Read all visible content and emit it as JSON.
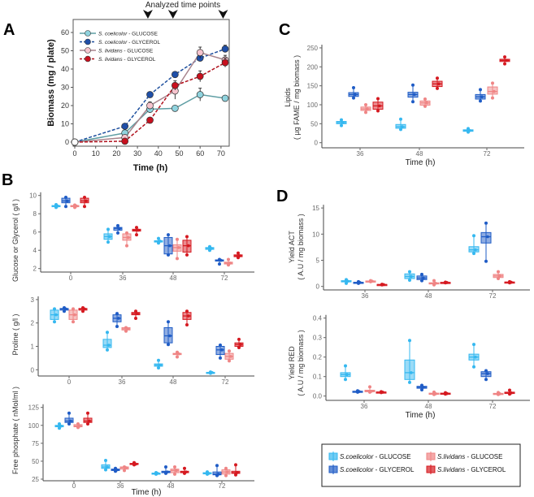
{
  "panels": {
    "a": "A",
    "b": "B",
    "c": "C",
    "d": "D"
  },
  "annotation": "Analyzed time points",
  "legend": {
    "items": [
      {
        "strain": "S.coelicolor",
        "substrate": " - GLUCOSE",
        "color": "#35b8f0"
      },
      {
        "strain": "S.coelicolor",
        "substrate": " - GLYCEROL",
        "color": "#1f5cc6"
      },
      {
        "strain": "S.lividans",
        "substrate": " - GLUCOSE",
        "color": "#ef8585"
      },
      {
        "strain": "S.lividans",
        "substrate": " - GLYCEROL",
        "color": "#d51920"
      }
    ]
  },
  "chart_data": [
    {
      "type": "line",
      "panel": "A",
      "xlabel": "Time (h)",
      "ylabel": "Biomass (mg / plate)",
      "xlim": [
        0,
        75
      ],
      "ylim": [
        0,
        65
      ],
      "xticks": [
        "0",
        "10",
        "20",
        "30",
        "40",
        "50",
        "60",
        "70"
      ],
      "yticks": [
        "0",
        "10",
        "20",
        "30",
        "40",
        "50",
        "60"
      ],
      "annotated_x": [
        35,
        47,
        71
      ],
      "x": [
        0,
        24,
        36,
        48,
        60,
        72
      ],
      "legend_position": "top-left",
      "series": [
        {
          "name": "S. coelicolor",
          "suffix": " - GLUCOSE",
          "values": [
            0,
            5,
            18,
            18.5,
            26,
            24
          ],
          "errors": [
            0,
            1,
            2,
            1,
            3.5,
            1
          ],
          "line": "#5f9ea4",
          "marker": "#8fd3de",
          "dash": false
        },
        {
          "name": "S. coelicolor",
          "suffix": " - GLYCEROL",
          "values": [
            0,
            8.7,
            26,
            37,
            46,
            51
          ],
          "errors": [
            0,
            1,
            1.5,
            1,
            1,
            2
          ],
          "line": "#1d4f9e",
          "marker": "#1f4fa8",
          "dash": true
        },
        {
          "name": "S. lividans",
          "suffix": " - GLUCOSE",
          "values": [
            0,
            2.5,
            20,
            28,
            49,
            45
          ],
          "errors": [
            0,
            1,
            2,
            4.5,
            3,
            2.5
          ],
          "line": "#a8848d",
          "marker": "#f6c4ce",
          "dash": false
        },
        {
          "name": "S. lividans",
          "suffix": " - GLYCEROL",
          "values": [
            0,
            0.5,
            12,
            31,
            36,
            43.5
          ],
          "errors": [
            0,
            0.5,
            1.5,
            2.5,
            3,
            2.5
          ],
          "line": "#b0101c",
          "marker": "#c8101e",
          "dash": true
        }
      ]
    },
    {
      "type": "box",
      "panel": "B",
      "ylabel": "Glucose or Glycerol ( g/l )",
      "categories": [
        "0",
        "36",
        "48",
        "72"
      ],
      "ylim": [
        2,
        10
      ],
      "yticks": [
        "2",
        "4",
        "6",
        "8",
        "10"
      ],
      "stats_order": [
        "min",
        "q1",
        "median",
        "q3",
        "max"
      ],
      "series": [
        {
          "name": "S.coelicolor - GLUCOSE",
          "values": [
            [
              8.7,
              8.8,
              8.85,
              8.9,
              9.0
            ],
            [
              4.9,
              5.2,
              5.5,
              5.8,
              6.3
            ],
            [
              4.8,
              4.9,
              5.0,
              5.05,
              5.3
            ],
            [
              4.0,
              4.1,
              4.2,
              4.3,
              4.4
            ]
          ]
        },
        {
          "name": "S.coelicolor - GLYCEROL",
          "values": [
            [
              8.8,
              9.2,
              9.4,
              9.7,
              9.8
            ],
            [
              5.9,
              6.2,
              6.4,
              6.5,
              6.7
            ],
            [
              3.5,
              3.6,
              4.5,
              5.4,
              5.7
            ],
            [
              2.5,
              2.85,
              2.9,
              2.95,
              3.0
            ]
          ]
        },
        {
          "name": "S.lividans - GLUCOSE",
          "values": [
            [
              8.7,
              8.8,
              8.85,
              8.9,
              8.95
            ],
            [
              4.5,
              5.1,
              5.4,
              5.8,
              5.9
            ],
            [
              3.1,
              3.9,
              4.3,
              4.6,
              5.2
            ],
            [
              2.4,
              2.5,
              2.6,
              2.7,
              3.0
            ]
          ]
        },
        {
          "name": "S.lividans - GLYCEROL",
          "values": [
            [
              8.8,
              9.2,
              9.4,
              9.7,
              9.8
            ],
            [
              5.7,
              6.1,
              6.2,
              6.3,
              6.5
            ],
            [
              3.5,
              3.8,
              4.5,
              5.1,
              5.5
            ],
            [
              3.2,
              3.3,
              3.4,
              3.5,
              3.7
            ]
          ]
        }
      ]
    },
    {
      "type": "box",
      "panel": "B",
      "ylabel": "Proline ( g/l )",
      "categories": [
        "0",
        "36",
        "48",
        "72"
      ],
      "ylim": [
        0,
        3
      ],
      "yticks": [
        "0",
        "1",
        "2",
        "3"
      ],
      "stats_order": [
        "min",
        "q1",
        "median",
        "q3",
        "max"
      ],
      "series": [
        {
          "name": "S.coelicolor - GLUCOSE",
          "values": [
            [
              2.05,
              2.15,
              2.35,
              2.55,
              2.6
            ],
            [
              0.85,
              0.95,
              1.05,
              1.3,
              1.6
            ],
            [
              0.08,
              0.15,
              0.2,
              0.25,
              0.4
            ],
            [
              -0.15,
              -0.13,
              -0.12,
              -0.11,
              -0.1
            ]
          ]
        },
        {
          "name": "S.coelicolor - GLYCEROL",
          "values": [
            [
              2.5,
              2.55,
              2.6,
              2.62,
              2.65
            ],
            [
              1.85,
              2.05,
              2.2,
              2.35,
              2.4
            ],
            [
              1.08,
              1.15,
              1.45,
              1.8,
              2.05
            ],
            [
              0.5,
              0.65,
              0.85,
              1.0,
              1.05
            ]
          ]
        },
        {
          "name": "S.lividans - GLUCOSE",
          "values": [
            [
              2.05,
              2.15,
              2.35,
              2.55,
              2.6
            ],
            [
              1.65,
              1.7,
              1.75,
              1.8,
              1.8
            ],
            [
              0.55,
              0.65,
              0.68,
              0.7,
              0.75
            ],
            [
              0.38,
              0.45,
              0.57,
              0.7,
              0.8
            ]
          ]
        },
        {
          "name": "S.lividans - GLYCEROL",
          "values": [
            [
              2.5,
              2.55,
              2.6,
              2.62,
              2.65
            ],
            [
              2.2,
              2.35,
              2.4,
              2.45,
              2.5
            ],
            [
              1.92,
              2.15,
              2.3,
              2.45,
              2.5
            ],
            [
              0.95,
              1.0,
              1.08,
              1.15,
              1.3
            ]
          ]
        }
      ]
    },
    {
      "type": "box",
      "panel": "B",
      "xlabel": "Time (h)",
      "ylabel": "Free phosphate ( nMol/ml )",
      "categories": [
        "0",
        "36",
        "48",
        "72"
      ],
      "ylim": [
        25,
        125
      ],
      "yticks": [
        "25",
        "50",
        "75",
        "100",
        "125"
      ],
      "stats_order": [
        "min",
        "q1",
        "median",
        "q3",
        "max"
      ],
      "series": [
        {
          "name": "S.coelicolor - GLUCOSE",
          "values": [
            [
              96,
              98,
              99,
              100,
              102
            ],
            [
              38,
              40,
              42,
              45,
              51
            ],
            [
              32,
              32.5,
              33,
              33.5,
              34
            ],
            [
              32,
              32.5,
              33,
              34,
              35
            ]
          ]
        },
        {
          "name": "S.coelicolor - GLYCEROL",
          "values": [
            [
              102,
              104,
              106,
              110,
              117
            ],
            [
              36,
              37,
              38,
              39,
              40
            ],
            [
              33,
              34,
              35,
              36,
              42
            ],
            [
              30,
              31,
              32,
              35,
              44
            ]
          ]
        },
        {
          "name": "S.lividans - GLUCOSE",
          "values": [
            [
              97,
              98,
              99,
              101,
              102
            ],
            [
              37,
              39,
              41,
              42,
              42
            ],
            [
              32,
              34,
              37,
              39,
              42
            ],
            [
              30,
              32,
              35,
              38,
              40
            ]
          ]
        },
        {
          "name": "S.lividans - GLYCEROL",
          "values": [
            [
              102,
              104,
              106,
              110,
              117
            ],
            [
              45,
              45.5,
              46,
              47,
              48
            ],
            [
              33,
              34,
              35,
              36,
              40
            ],
            [
              31,
              33,
              34,
              36,
              45
            ]
          ]
        }
      ]
    },
    {
      "type": "box",
      "panel": "C",
      "xlabel": "Time (h)",
      "ylabel": [
        "Lipids",
        "( µg FAME / mg biomass )"
      ],
      "categories": [
        "36",
        "48",
        "72"
      ],
      "ylim": [
        0,
        250
      ],
      "yticks": [
        "0",
        "50",
        "100",
        "150",
        "200",
        "250"
      ],
      "stats_order": [
        "min",
        "q1",
        "median",
        "q3",
        "max"
      ],
      "series": [
        {
          "name": "S.coelicolor - GLUCOSE",
          "values": [
            [
              45,
              50,
              53,
              56,
              60
            ],
            [
              35,
              38,
              42,
              48,
              62
            ],
            [
              28,
              30,
              32,
              34,
              37
            ]
          ]
        },
        {
          "name": "S.coelicolor - GLYCEROL",
          "values": [
            [
              118,
              122,
              127,
              132,
              145
            ],
            [
              108,
              120,
              127,
              133,
              152
            ],
            [
              110,
              115,
              121,
              127,
              140
            ]
          ]
        },
        {
          "name": "S.lividans - GLUCOSE",
          "values": [
            [
              80,
              85,
              89,
              94,
              100
            ],
            [
              96,
              99,
              105,
              110,
              115
            ],
            [
              118,
              128,
              135,
              147,
              157
            ]
          ]
        },
        {
          "name": "S.lividans - GLYCEROL",
          "values": [
            [
              84,
              88,
              97,
              107,
              116
            ],
            [
              143,
              148,
              155,
              162,
              170
            ],
            [
              208,
              214,
              217,
              220,
              226
            ]
          ]
        }
      ]
    },
    {
      "type": "box",
      "panel": "D",
      "ylabel": [
        "Yield ACT",
        "( A.U / mg biomass )"
      ],
      "categories": [
        "36",
        "48",
        "72"
      ],
      "ylim": [
        0,
        15
      ],
      "yticks": [
        "0",
        "5",
        "10",
        "15"
      ],
      "stats_order": [
        "min",
        "q1",
        "median",
        "q3",
        "max"
      ],
      "series": [
        {
          "name": "S.coelicolor - GLUCOSE",
          "values": [
            [
              0.6,
              0.9,
              1.0,
              1.1,
              1.3
            ],
            [
              1.2,
              1.5,
              1.9,
              2.4,
              2.8
            ],
            [
              6.3,
              6.6,
              7.0,
              7.6,
              9.7
            ]
          ]
        },
        {
          "name": "S.coelicolor - GLYCEROL",
          "values": [
            [
              0.6,
              0.7,
              0.75,
              0.8,
              0.9
            ],
            [
              1.1,
              1.3,
              1.6,
              2.0,
              2.3
            ],
            [
              4.8,
              8.3,
              9.5,
              10.3,
              12.1
            ]
          ]
        },
        {
          "name": "S.lividans - GLUCOSE",
          "values": [
            [
              0.9,
              0.95,
              1.0,
              1.05,
              1.1
            ],
            [
              0.3,
              0.5,
              0.6,
              0.7,
              1.1
            ],
            [
              1.5,
              1.7,
              2.0,
              2.3,
              2.8
            ]
          ]
        },
        {
          "name": "S.lividans - GLYCEROL",
          "values": [
            [
              0.3,
              0.32,
              0.35,
              0.38,
              0.4
            ],
            [
              0.7,
              0.72,
              0.75,
              0.78,
              0.8
            ],
            [
              0.7,
              0.75,
              0.8,
              0.85,
              0.9
            ]
          ]
        }
      ]
    },
    {
      "type": "box",
      "panel": "D",
      "xlabel": "Time (h)",
      "ylabel": [
        "Yield RED",
        "( A.U / mg biomass )"
      ],
      "categories": [
        "36",
        "48",
        "72"
      ],
      "ylim": [
        0,
        0.4
      ],
      "yticks": [
        "0.0",
        "0.1",
        "0.2",
        "0.3",
        "0.4"
      ],
      "stats_order": [
        "min",
        "q1",
        "median",
        "q3",
        "max"
      ],
      "series": [
        {
          "name": "S.coelicolor - GLUCOSE",
          "values": [
            [
              0.085,
              0.1,
              0.11,
              0.12,
              0.155
            ],
            [
              0.07,
              0.085,
              0.12,
              0.185,
              0.285
            ],
            [
              0.15,
              0.185,
              0.2,
              0.215,
              0.265
            ]
          ]
        },
        {
          "name": "S.coelicolor - GLYCEROL",
          "values": [
            [
              0.02,
              0.022,
              0.023,
              0.025,
              0.027
            ],
            [
              0.032,
              0.04,
              0.045,
              0.05,
              0.055
            ],
            [
              0.085,
              0.1,
              0.115,
              0.125,
              0.13
            ]
          ]
        },
        {
          "name": "S.lividans - GLUCOSE",
          "values": [
            [
              0.02,
              0.022,
              0.025,
              0.03,
              0.047
            ],
            [
              0.008,
              0.01,
              0.012,
              0.015,
              0.02
            ],
            [
              0.008,
              0.01,
              0.012,
              0.014,
              0.018
            ]
          ]
        },
        {
          "name": "S.lividans - GLYCEROL",
          "values": [
            [
              0.018,
              0.019,
              0.02,
              0.021,
              0.022
            ],
            [
              0.01,
              0.012,
              0.013,
              0.015,
              0.017
            ],
            [
              0.01,
              0.013,
              0.016,
              0.02,
              0.03
            ]
          ]
        }
      ]
    }
  ]
}
